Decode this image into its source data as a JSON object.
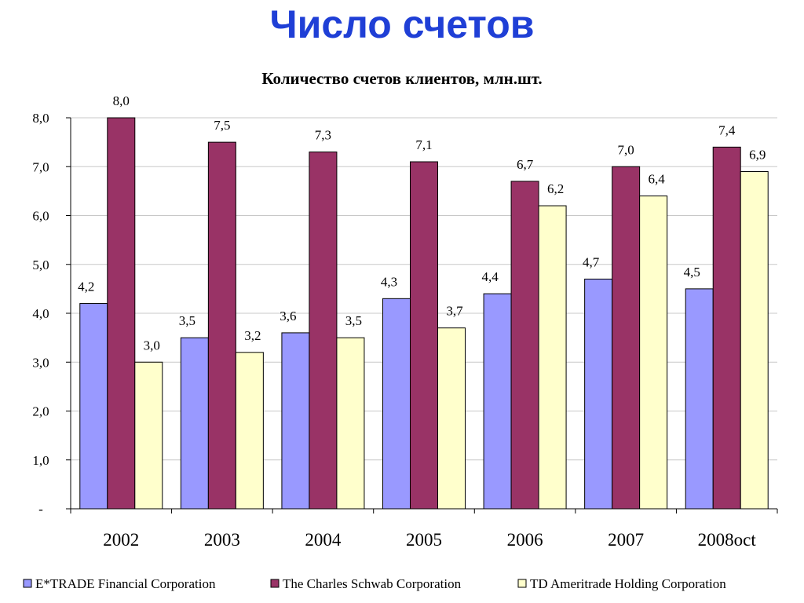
{
  "slide": {
    "title": "Число счетов"
  },
  "chart_data": {
    "type": "bar",
    "title": "Количество счетов клиентов, млн.шт.",
    "xlabel": "",
    "ylabel": "",
    "ylim": [
      0,
      8
    ],
    "yticks": [
      "-",
      "1,0",
      "2,0",
      "3,0",
      "4,0",
      "5,0",
      "6,0",
      "7,0",
      "8,0"
    ],
    "categories": [
      "2002",
      "2003",
      "2004",
      "2005",
      "2006",
      "2007",
      "2008oct"
    ],
    "grid": true,
    "legend_position": "bottom",
    "series": [
      {
        "name": "E*TRADE Financial Corporation",
        "color": "#9999ff",
        "values": [
          4.2,
          3.5,
          3.6,
          4.3,
          4.4,
          4.7,
          4.5
        ],
        "labels": [
          "4,2",
          "3,5",
          "3,6",
          "4,3",
          "4,4",
          "4,7",
          "4,5"
        ]
      },
      {
        "name": "The Charles Schwab Corporation",
        "color": "#993366",
        "values": [
          8.0,
          7.5,
          7.3,
          7.1,
          6.7,
          7.0,
          7.4
        ],
        "labels": [
          "8,0",
          "7,5",
          "7,3",
          "7,1",
          "6,7",
          "7,0",
          "7,4"
        ]
      },
      {
        "name": "TD Ameritrade Holding Corporation",
        "color": "#ffffcc",
        "values": [
          3.0,
          3.2,
          3.5,
          3.7,
          6.2,
          6.4,
          6.9
        ],
        "labels": [
          "3,0",
          "3,2",
          "3,5",
          "3,7",
          "6,2",
          "6,4",
          "6,9"
        ]
      }
    ]
  }
}
